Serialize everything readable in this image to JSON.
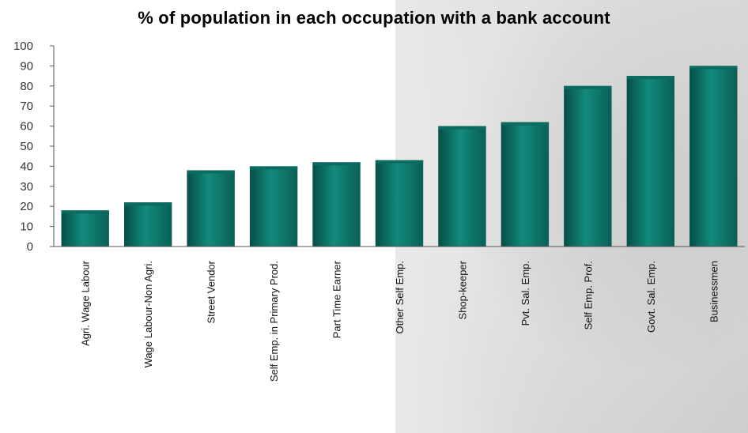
{
  "chart_data": {
    "type": "bar",
    "title": "% of population in each occupation with a bank account",
    "xlabel": "",
    "ylabel": "",
    "ylim": [
      0,
      100
    ],
    "yticks": [
      0,
      10,
      20,
      30,
      40,
      50,
      60,
      70,
      80,
      90,
      100
    ],
    "categories": [
      "Agri. Wage Labour",
      "Wage Labour-Non Agri.",
      "Street Vendor",
      "Self Emp. in Primary Prod.",
      "Part Time Earner",
      "Other Self Emp.",
      "Shop-keeper",
      "Pvt. Sal. Emp.",
      "Self Emp. Prof.",
      "Govt. Sal. Emp.",
      "Businessmen"
    ],
    "values": [
      18,
      22,
      38,
      40,
      42,
      43,
      60,
      62,
      80,
      85,
      90
    ],
    "grid": false,
    "legend": "none",
    "bar_color": "#0f7a6e"
  }
}
